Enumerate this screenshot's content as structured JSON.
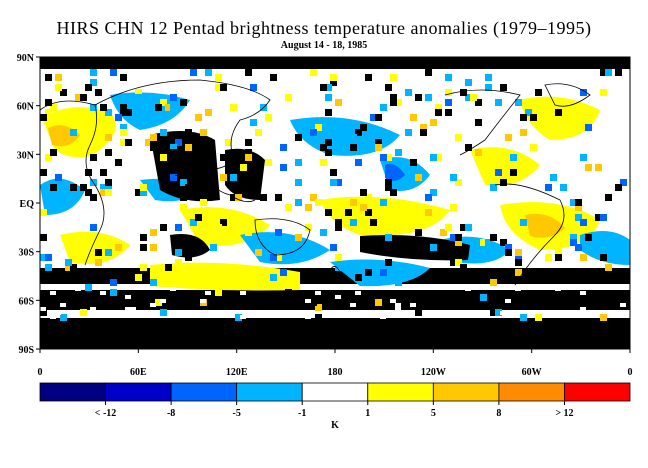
{
  "title": "HIRS CHN 12 Pentad brightness temperature anomalies (1979–1995)",
  "subtitle": "August 14 - 18, 1985",
  "map": {
    "lat_labels": [
      "90N",
      "60N",
      "30N",
      "EQ",
      "30S",
      "60S",
      "90S"
    ],
    "lon_labels": [
      "0",
      "60E",
      "120E",
      "180",
      "120W",
      "60W",
      "0"
    ]
  },
  "colorbar": {
    "colors": [
      "#000080",
      "#0000c8",
      "#0064ff",
      "#00b4ff",
      "#ffffff",
      "#ffff00",
      "#ffc800",
      "#ff8c00",
      "#ff0000"
    ],
    "labels": [
      "< -12",
      "-8",
      "-5",
      "-1",
      "1",
      "5",
      "8",
      "> 12"
    ],
    "unit": "K"
  }
}
